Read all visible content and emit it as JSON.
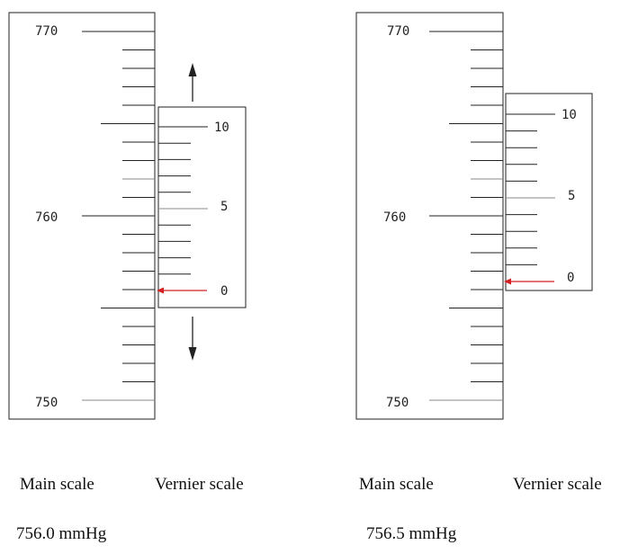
{
  "left_diagram": {
    "main_labels": {
      "top": "770",
      "middle": "760",
      "bottom": "750"
    },
    "vernier_labels": {
      "top": "10",
      "middle": "5",
      "bottom": "0"
    },
    "caption_main": "Main scale",
    "caption_vernier": "Vernier scale",
    "reading": "756.0 mmHg"
  },
  "right_diagram": {
    "main_labels": {
      "top": "770",
      "middle": "760",
      "bottom": "750"
    },
    "vernier_labels": {
      "top": "10",
      "middle": "5",
      "bottom": "0"
    },
    "caption_main": "Main scale",
    "caption_vernier": "Vernier scale",
    "reading": "756.5 mmHg"
  },
  "colors": {
    "pointer": "#d42020",
    "lines": "#222222"
  }
}
